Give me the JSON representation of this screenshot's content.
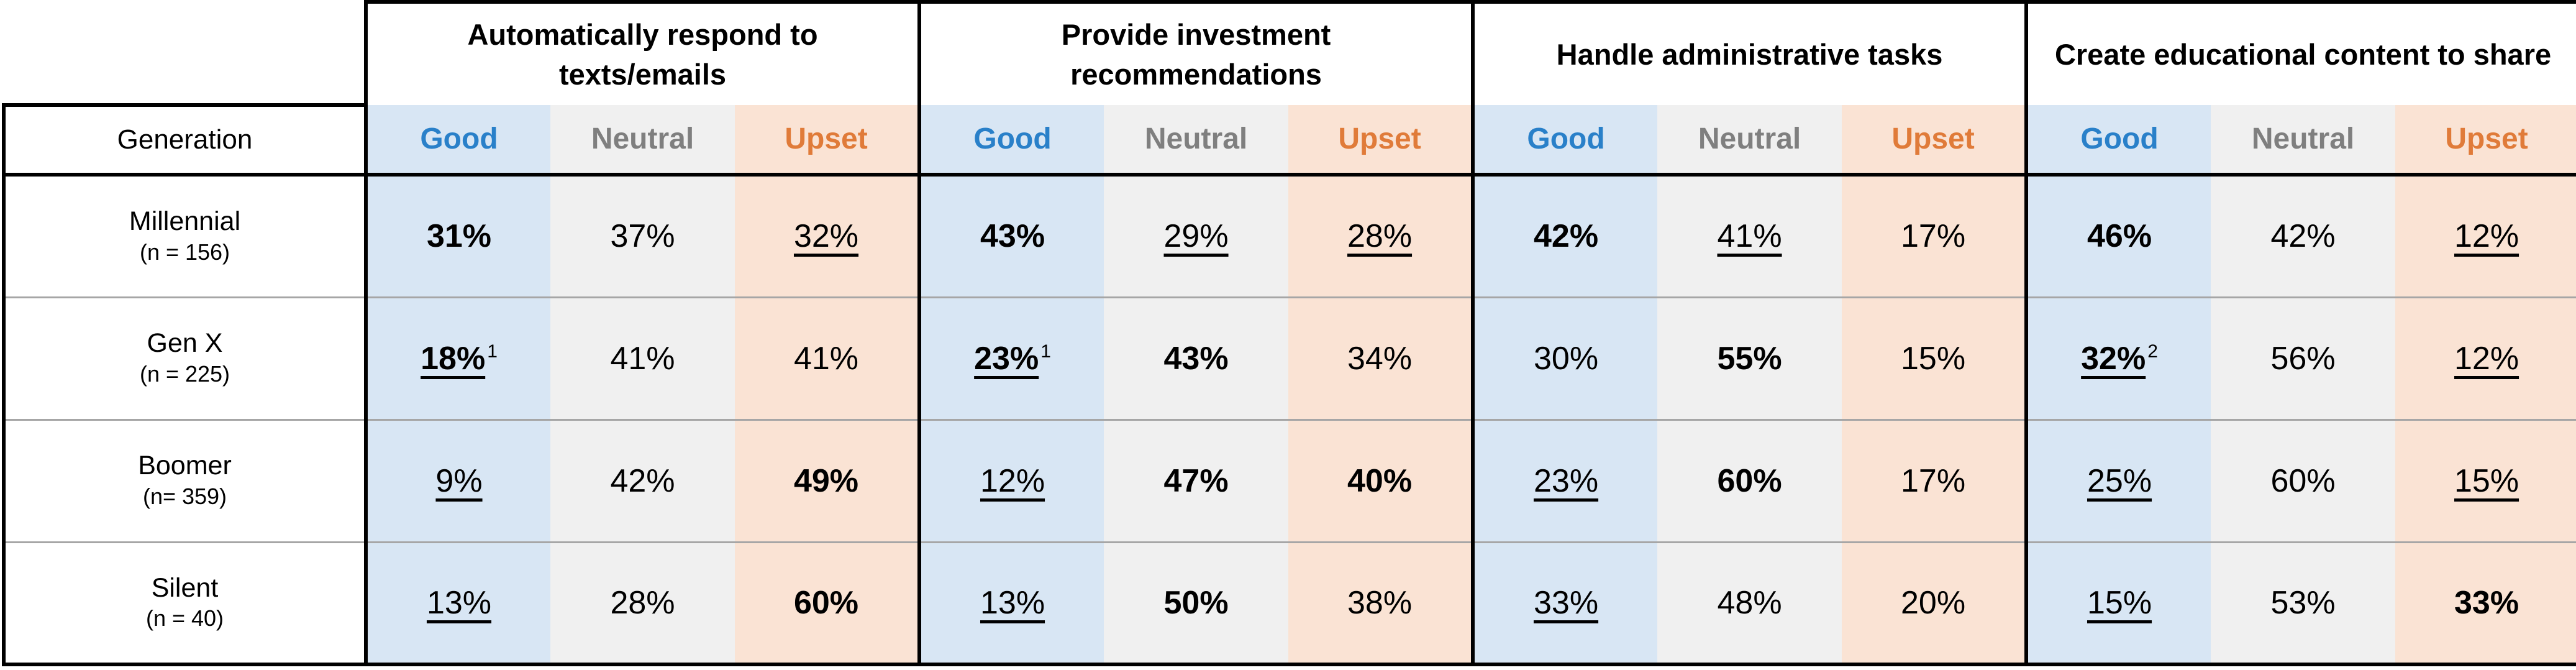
{
  "colors": {
    "blue_text": "#2980C9",
    "gray_text": "#7F7F7F",
    "orange_text": "#E07B39",
    "blue_bg": "#D8E6F4",
    "gray_bg": "#F0F0F0",
    "orange_bg": "#FAE3D4",
    "border_black": "#000000",
    "divider_gray": "#A6A6A6"
  },
  "table": {
    "generation_header": "Generation",
    "categories": [
      {
        "label": "Automatically respond to\ntexts/emails"
      },
      {
        "label": "Provide investment\nrecommendations"
      },
      {
        "label": "Handle administrative tasks"
      },
      {
        "label": "Create educational content to share"
      }
    ],
    "response_labels": [
      "Good",
      "Neutral",
      "Upset"
    ],
    "rows": [
      {
        "generation": "Millennial",
        "n": "(n = 156)",
        "cells": [
          {
            "value": "31%",
            "bold": true,
            "underline": false,
            "sup": ""
          },
          {
            "value": "37%",
            "bold": false,
            "underline": false,
            "sup": ""
          },
          {
            "value": "32%",
            "bold": false,
            "underline": true,
            "sup": ""
          },
          {
            "value": "43%",
            "bold": true,
            "underline": false,
            "sup": ""
          },
          {
            "value": "29%",
            "bold": false,
            "underline": true,
            "sup": ""
          },
          {
            "value": "28%",
            "bold": false,
            "underline": true,
            "sup": ""
          },
          {
            "value": "42%",
            "bold": true,
            "underline": false,
            "sup": ""
          },
          {
            "value": "41%",
            "bold": false,
            "underline": true,
            "sup": ""
          },
          {
            "value": "17%",
            "bold": false,
            "underline": false,
            "sup": ""
          },
          {
            "value": "46%",
            "bold": true,
            "underline": false,
            "sup": ""
          },
          {
            "value": "42%",
            "bold": false,
            "underline": false,
            "sup": ""
          },
          {
            "value": "12%",
            "bold": false,
            "underline": true,
            "sup": ""
          }
        ]
      },
      {
        "generation": "Gen X",
        "n": "(n = 225)",
        "cells": [
          {
            "value": "18%",
            "bold": true,
            "underline": true,
            "sup": "1"
          },
          {
            "value": "41%",
            "bold": false,
            "underline": false,
            "sup": ""
          },
          {
            "value": "41%",
            "bold": false,
            "underline": false,
            "sup": ""
          },
          {
            "value": "23%",
            "bold": true,
            "underline": true,
            "sup": "1"
          },
          {
            "value": "43%",
            "bold": true,
            "underline": false,
            "sup": ""
          },
          {
            "value": "34%",
            "bold": false,
            "underline": false,
            "sup": ""
          },
          {
            "value": "30%",
            "bold": false,
            "underline": false,
            "sup": ""
          },
          {
            "value": "55%",
            "bold": true,
            "underline": false,
            "sup": ""
          },
          {
            "value": "15%",
            "bold": false,
            "underline": false,
            "sup": ""
          },
          {
            "value": "32%",
            "bold": true,
            "underline": true,
            "sup": "2"
          },
          {
            "value": "56%",
            "bold": false,
            "underline": false,
            "sup": ""
          },
          {
            "value": "12%",
            "bold": false,
            "underline": true,
            "sup": ""
          }
        ]
      },
      {
        "generation": "Boomer",
        "n": "(n= 359)",
        "cells": [
          {
            "value": "9%",
            "bold": false,
            "underline": true,
            "sup": ""
          },
          {
            "value": "42%",
            "bold": false,
            "underline": false,
            "sup": ""
          },
          {
            "value": "49%",
            "bold": true,
            "underline": false,
            "sup": ""
          },
          {
            "value": "12%",
            "bold": false,
            "underline": true,
            "sup": ""
          },
          {
            "value": "47%",
            "bold": true,
            "underline": false,
            "sup": ""
          },
          {
            "value": "40%",
            "bold": true,
            "underline": false,
            "sup": ""
          },
          {
            "value": "23%",
            "bold": false,
            "underline": true,
            "sup": ""
          },
          {
            "value": "60%",
            "bold": true,
            "underline": false,
            "sup": ""
          },
          {
            "value": "17%",
            "bold": false,
            "underline": false,
            "sup": ""
          },
          {
            "value": "25%",
            "bold": false,
            "underline": true,
            "sup": ""
          },
          {
            "value": "60%",
            "bold": false,
            "underline": false,
            "sup": ""
          },
          {
            "value": "15%",
            "bold": false,
            "underline": true,
            "sup": ""
          }
        ]
      },
      {
        "generation": "Silent",
        "n": "(n = 40)",
        "cells": [
          {
            "value": "13%",
            "bold": false,
            "underline": true,
            "sup": ""
          },
          {
            "value": "28%",
            "bold": false,
            "underline": false,
            "sup": ""
          },
          {
            "value": "60%",
            "bold": true,
            "underline": false,
            "sup": ""
          },
          {
            "value": "13%",
            "bold": false,
            "underline": true,
            "sup": ""
          },
          {
            "value": "50%",
            "bold": true,
            "underline": false,
            "sup": ""
          },
          {
            "value": "38%",
            "bold": false,
            "underline": false,
            "sup": ""
          },
          {
            "value": "33%",
            "bold": false,
            "underline": true,
            "sup": ""
          },
          {
            "value": "48%",
            "bold": false,
            "underline": false,
            "sup": ""
          },
          {
            "value": "20%",
            "bold": false,
            "underline": false,
            "sup": ""
          },
          {
            "value": "15%",
            "bold": false,
            "underline": true,
            "sup": ""
          },
          {
            "value": "53%",
            "bold": false,
            "underline": false,
            "sup": ""
          },
          {
            "value": "33%",
            "bold": true,
            "underline": false,
            "sup": ""
          }
        ]
      }
    ]
  },
  "chart_data": {
    "type": "table",
    "title": "",
    "row_header": "Generation",
    "row_labels": [
      "Millennial (n = 156)",
      "Gen X (n = 225)",
      "Boomer (n= 359)",
      "Silent (n = 40)"
    ],
    "column_groups": [
      "Automatically respond to texts/emails",
      "Provide investment recommendations",
      "Handle administrative tasks",
      "Create educational content to share"
    ],
    "columns_per_group": [
      "Good",
      "Neutral",
      "Upset"
    ],
    "values_percent": [
      [
        31,
        37,
        32,
        43,
        29,
        28,
        42,
        41,
        17,
        46,
        42,
        12
      ],
      [
        18,
        41,
        41,
        23,
        43,
        34,
        30,
        55,
        15,
        32,
        56,
        12
      ],
      [
        9,
        42,
        49,
        12,
        47,
        40,
        23,
        60,
        17,
        25,
        60,
        15
      ],
      [
        13,
        28,
        60,
        13,
        50,
        38,
        33,
        48,
        20,
        15,
        53,
        33
      ]
    ],
    "footnote_superscripts": [
      {
        "row": "Gen X",
        "group": "Automatically respond to texts/emails",
        "column": "Good",
        "marker": "1"
      },
      {
        "row": "Gen X",
        "group": "Provide investment recommendations",
        "column": "Good",
        "marker": "1"
      },
      {
        "row": "Gen X",
        "group": "Create educational content to share",
        "column": "Good",
        "marker": "2"
      }
    ],
    "emphasis_legend": "bold = emphasized value, underline = underlined value (as rendered in source table)"
  }
}
